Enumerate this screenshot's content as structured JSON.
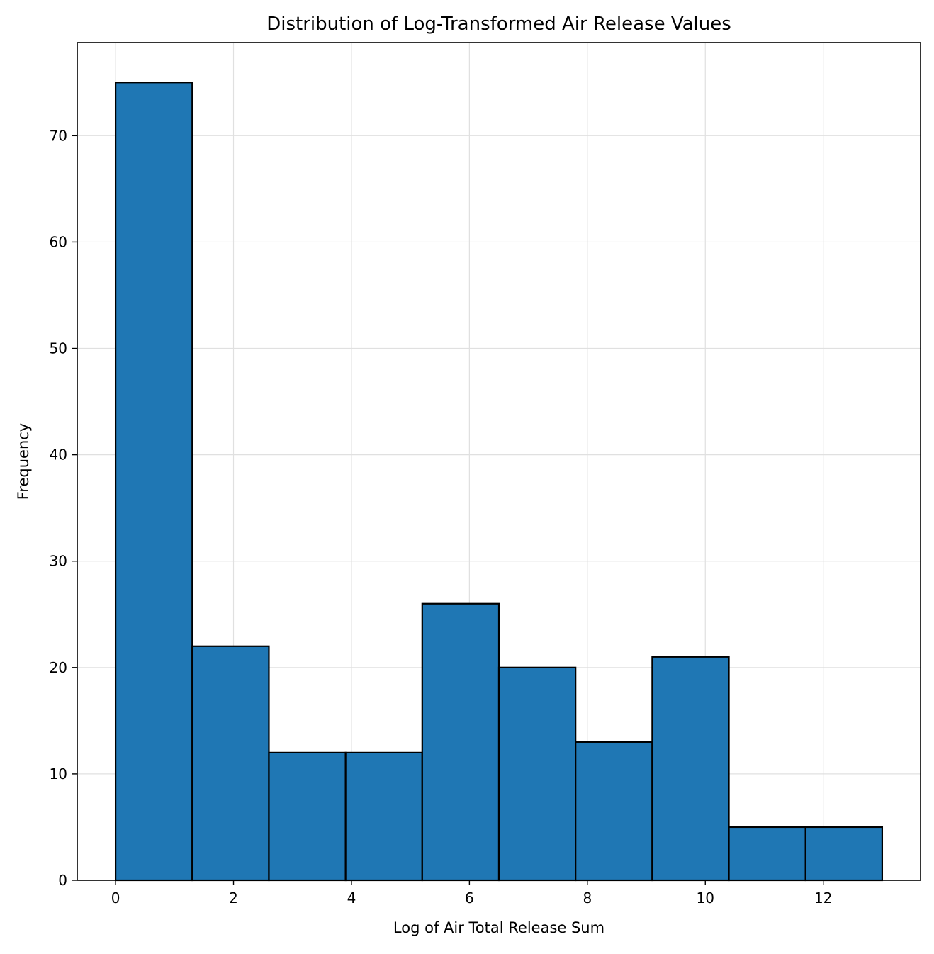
{
  "chart_data": {
    "type": "bar",
    "subtype": "histogram",
    "title": "Distribution of Log-Transformed Air Release Values",
    "xlabel": "Log of Air Total Release Sum",
    "ylabel": "Frequency",
    "bin_edges": [
      0,
      1.3,
      2.6,
      3.9,
      5.2,
      6.5,
      7.8,
      9.1,
      10.4,
      11.7,
      13.0
    ],
    "values": [
      75,
      22,
      12,
      12,
      26,
      20,
      13,
      21,
      5,
      5
    ],
    "xlim": [
      -0.65,
      13.65
    ],
    "ylim": [
      0,
      78.75
    ],
    "xticks": [
      0,
      2,
      4,
      6,
      8,
      10,
      12
    ],
    "yticks": [
      0,
      10,
      20,
      30,
      40,
      50,
      60,
      70
    ],
    "grid": true,
    "bar_color": "#1f77b4",
    "edge_color": "#000000",
    "grid_color": "#e0e0e0"
  }
}
